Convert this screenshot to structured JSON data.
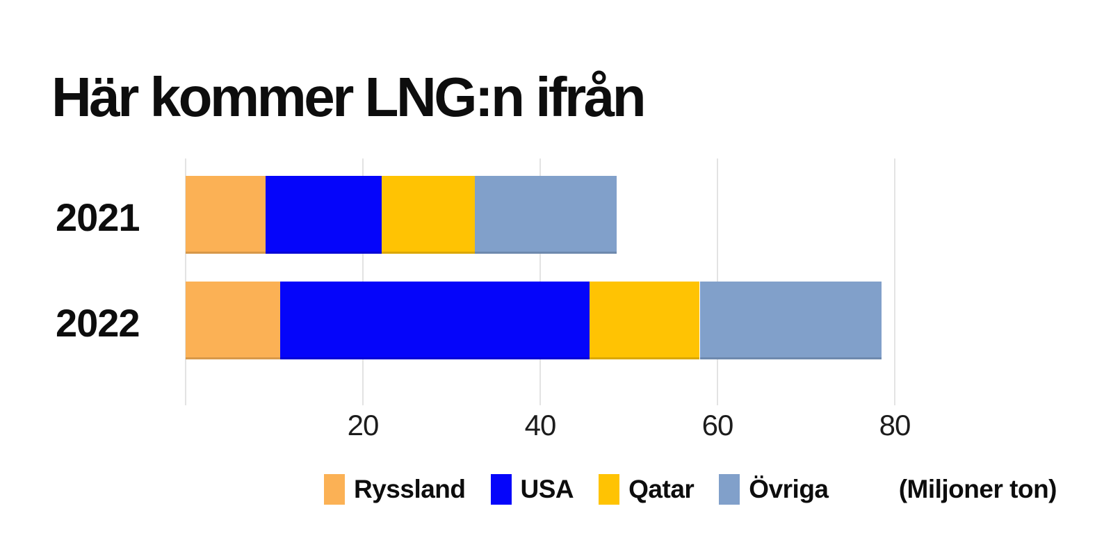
{
  "chart_data": {
    "type": "bar",
    "orientation": "horizontal",
    "stacked": true,
    "title": "Här kommer LNG:n ifrån",
    "unit_label": "(Miljoner ton)",
    "categories": [
      "2021",
      "2022"
    ],
    "series": [
      {
        "name": "Ryssland",
        "color": "#FBB155",
        "values": [
          9.0,
          10.7
        ]
      },
      {
        "name": "USA",
        "color": "#0505FA",
        "values": [
          13.1,
          34.9
        ]
      },
      {
        "name": "Qatar",
        "color": "#FFC303",
        "values": [
          10.5,
          12.4
        ]
      },
      {
        "name": "Övriga",
        "color": "#81A0CA",
        "values": [
          16.0,
          20.5
        ]
      }
    ],
    "totals": [
      48.6,
      78.5
    ],
    "xticks": [
      20,
      40,
      60,
      80
    ],
    "xlim": [
      0,
      88
    ],
    "grid": "vertical-gridlines-including-zero",
    "legend_position": "bottom",
    "colors": {
      "background": "#ffffff",
      "gridline": "#e3e3e3",
      "text": "#0d0d0d"
    }
  }
}
